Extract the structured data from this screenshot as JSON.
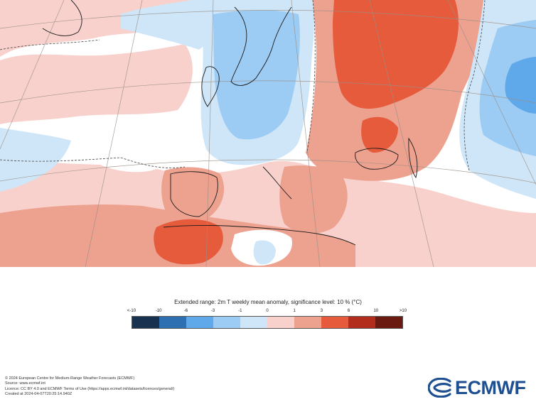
{
  "legend": {
    "title": "Extended range: 2m T weekly mean anomaly, significance level: 10 % (°C)",
    "ticks": [
      "<-10",
      "-10",
      "-6",
      "-3",
      "-1",
      "0",
      "1",
      "3",
      "6",
      "10",
      ">10"
    ],
    "colors": [
      "#17314f",
      "#2e6fb1",
      "#5fa9ea",
      "#9ccbf3",
      "#cfe6f8",
      "#f8d1cc",
      "#eda18f",
      "#e55b3c",
      "#b22d1b",
      "#6a1a10"
    ]
  },
  "map": {
    "region": "Europe",
    "colors": {
      "neutral": "#ffffff",
      "warm_light": "#f8d1cc",
      "warm_mid": "#eda18f",
      "warm_strong": "#e55b3c",
      "cool_light": "#cfe6f8",
      "cool_mid": "#9ccbf3",
      "cool_strong": "#5fa9ea"
    }
  },
  "footer": {
    "lines": [
      "© 2024 European Centre for Medium-Range Weather Forecasts (ECMWF)",
      "Source: www.ecmwf.int",
      "Licence: CC BY 4.0 and ECMWF Terms of Use (https://apps.ecmwf.int/datasets/licences/general/)",
      "Created at 2024-04-07T20:25:14.940Z"
    ]
  },
  "logo": {
    "text": "ECMWF",
    "icon": "ecmwf-logo-icon"
  }
}
